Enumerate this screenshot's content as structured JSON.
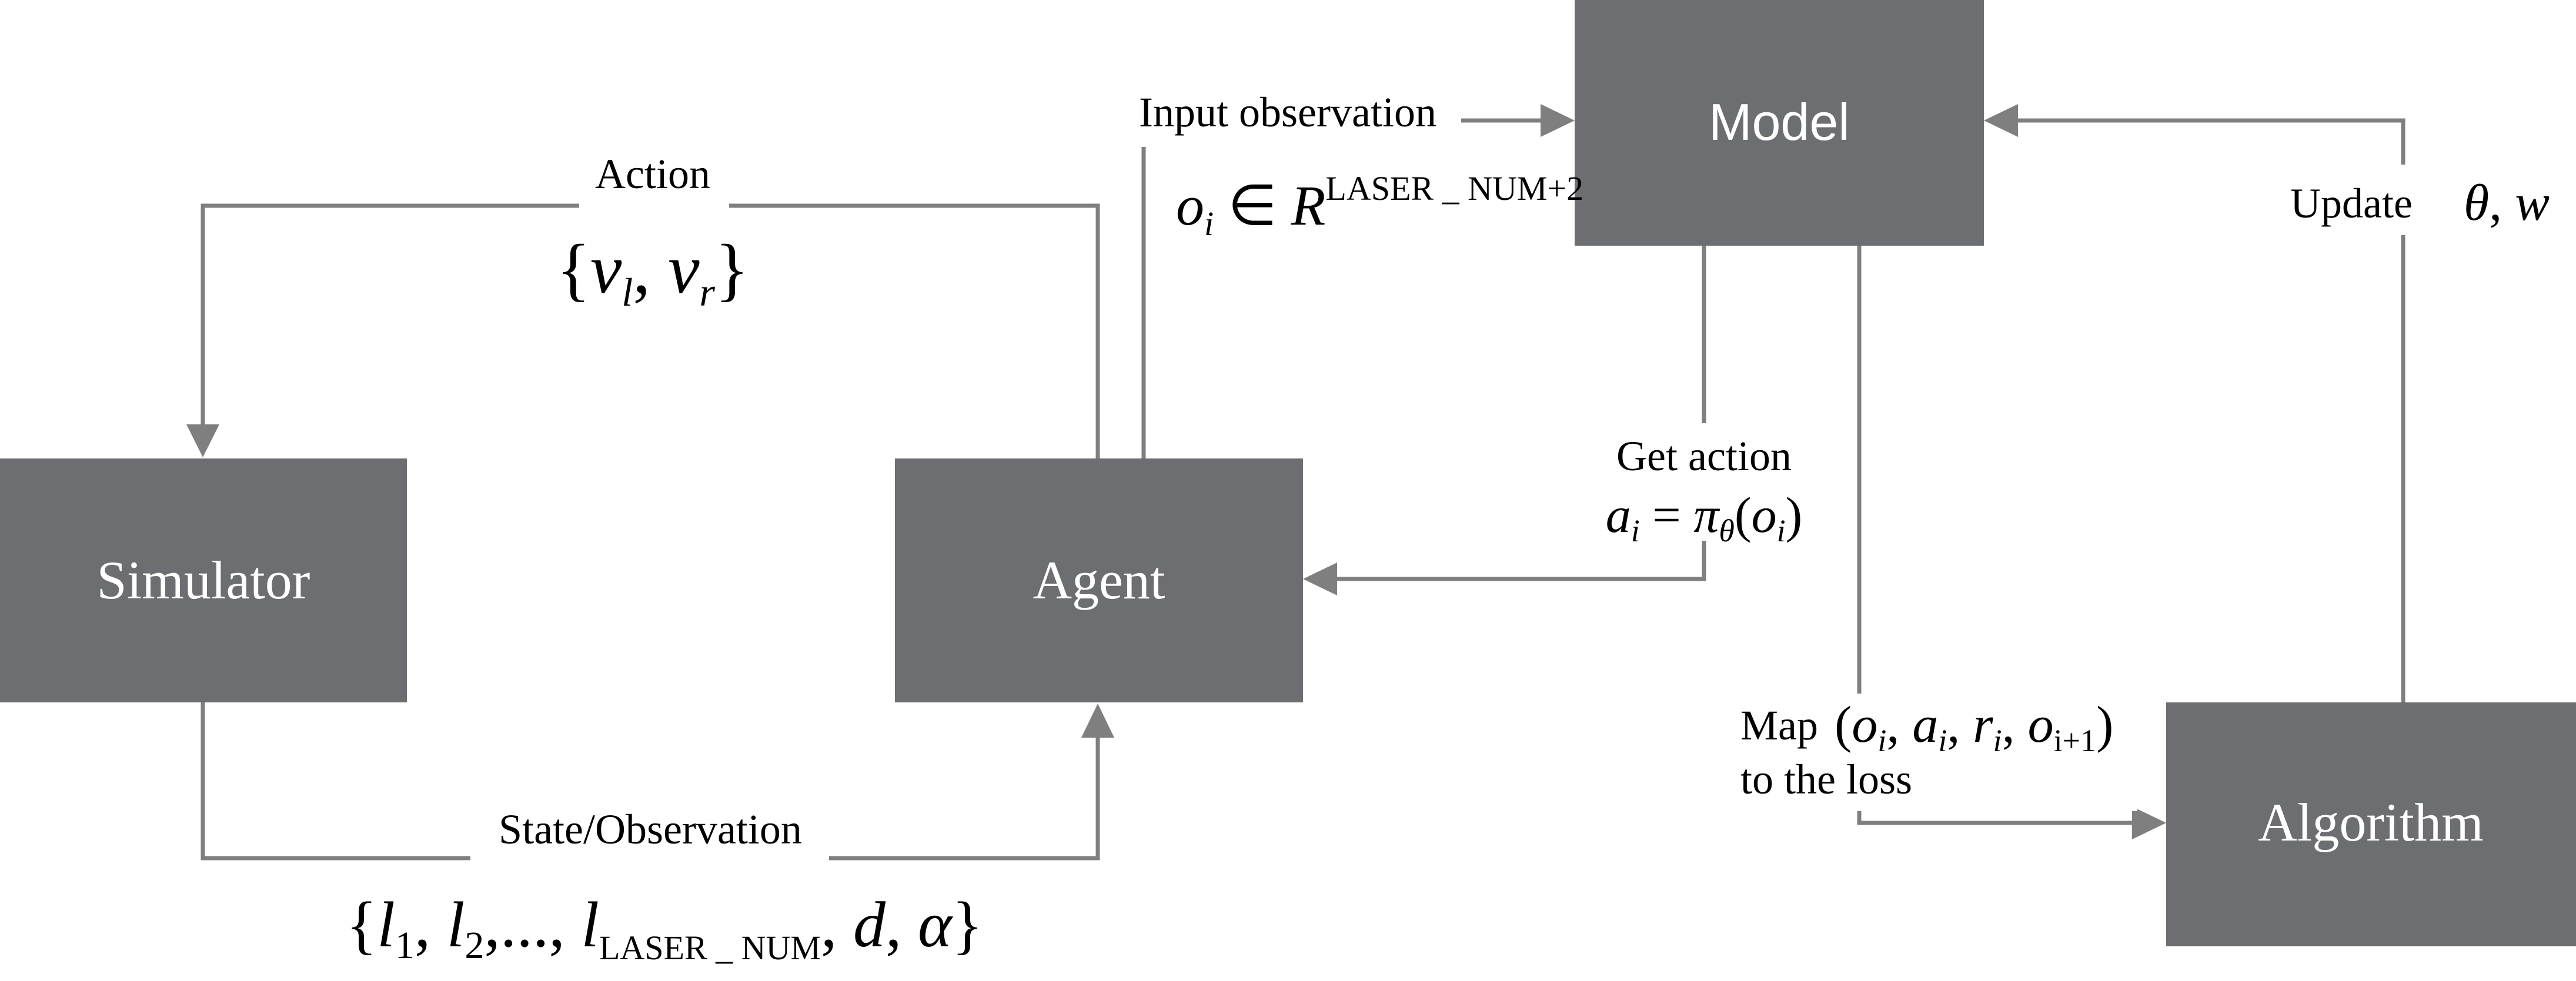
{
  "boxes": {
    "simulator": "Simulator",
    "agent": "Agent",
    "model": "Model",
    "algorithm": "Algorithm"
  },
  "labels": {
    "action": "Action",
    "state_observation": "State/Observation",
    "input_observation": "Input observation",
    "get_action": "Get action",
    "map_prefix": "Map",
    "map_suffix": "to the loss",
    "update": "Update"
  },
  "math": {
    "action_set": "{v_l, v_r}",
    "observation_set": "{l_1, l_2, ..., l_LASER_NUM, d, α}",
    "observation_space": "o_i ∈ R^(LASER_NUM+2)",
    "policy": "a_i = π_θ(o_i)",
    "transition": "(o_i, a_i, r_i, o_i+1)",
    "params": "θ, w"
  },
  "colors": {
    "box_fill": "#6d6e71",
    "connector": "#7f7f7f",
    "box_text": "#ffffff",
    "label_text": "#000000"
  }
}
